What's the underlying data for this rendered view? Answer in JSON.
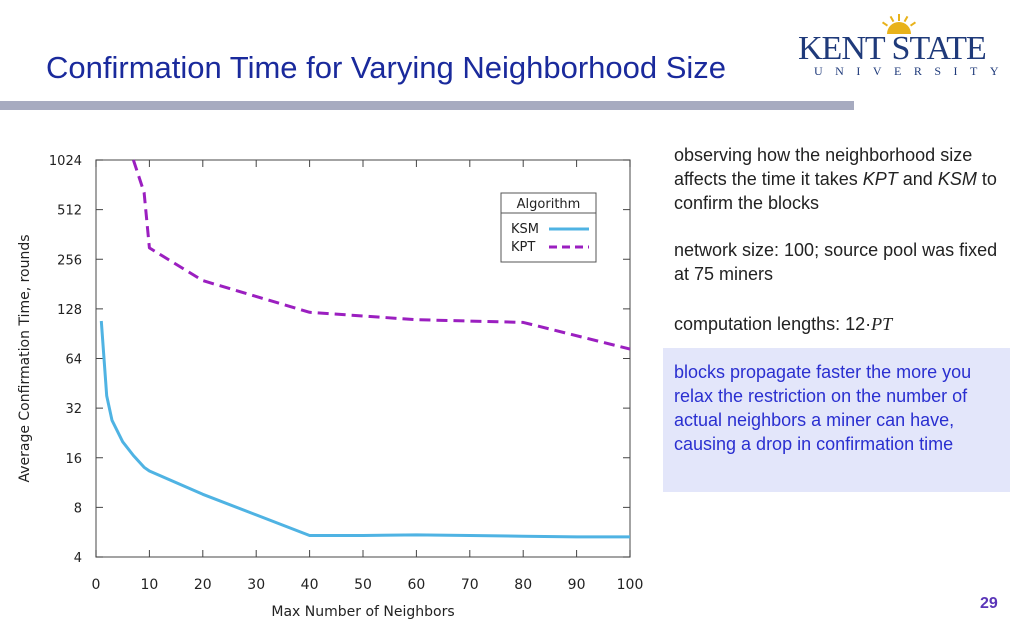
{
  "slide": {
    "title": "Confirmation Time for Varying Neighborhood Size",
    "page_number": "29",
    "logo": {
      "main": "KENT STATE",
      "sub": "UNIVERSITY"
    },
    "notes": {
      "p1_a": "observing how the neighborhood size affects the time it takes ",
      "p1_kpt": "KPT",
      "p1_b": " and ",
      "p1_ksm": "KSM",
      "p1_c": " to confirm the blocks",
      "p2": "network size: 100; source pool was fixed at 75 miners",
      "p3_a": "computation lengths: 12·",
      "p3_pt": "PT",
      "highlight": "blocks propagate faster the more you relax the restriction on the number of actual neighbors a miner can have, causing a drop in confirmation time"
    },
    "colors": {
      "title": "#1a2a9c",
      "rule": "#a7abc0",
      "highlight_bg": "#e3e6fa",
      "highlight_text": "#2a2fd0",
      "page_number": "#5a35b8",
      "logo": "#1f3a7a",
      "logo_sun": "#e8b21a"
    }
  },
  "chart_data": {
    "type": "line",
    "xlabel": "Max Number of Neighbors",
    "ylabel": "Average Confirmation Time, rounds",
    "xlim": [
      0,
      100
    ],
    "ylim": [
      4,
      1024
    ],
    "y_scale": "log2",
    "x_ticks": [
      0,
      10,
      20,
      30,
      40,
      50,
      60,
      70,
      80,
      90,
      100
    ],
    "y_ticks": [
      4,
      8,
      16,
      32,
      64,
      128,
      256,
      512,
      1024
    ],
    "legend": {
      "title": "Algorithm",
      "placement": "top-right"
    },
    "series": [
      {
        "name": "KSM",
        "color": "#4fb3e3",
        "dash": "solid",
        "x": [
          1,
          2,
          3,
          5,
          7,
          9,
          10,
          20,
          30,
          40,
          50,
          60,
          70,
          80,
          90,
          100
        ],
        "y": [
          108,
          38,
          27,
          20,
          16.5,
          14,
          13.3,
          9.6,
          7.2,
          5.4,
          5.4,
          5.45,
          5.4,
          5.35,
          5.3,
          5.3
        ]
      },
      {
        "name": "KPT",
        "color": "#9b1fc0",
        "dash": "dashed",
        "x": [
          7,
          9,
          10,
          20,
          40,
          60,
          80,
          100
        ],
        "y": [
          1024,
          650,
          300,
          190,
          122,
          110,
          106,
          73
        ]
      }
    ]
  }
}
